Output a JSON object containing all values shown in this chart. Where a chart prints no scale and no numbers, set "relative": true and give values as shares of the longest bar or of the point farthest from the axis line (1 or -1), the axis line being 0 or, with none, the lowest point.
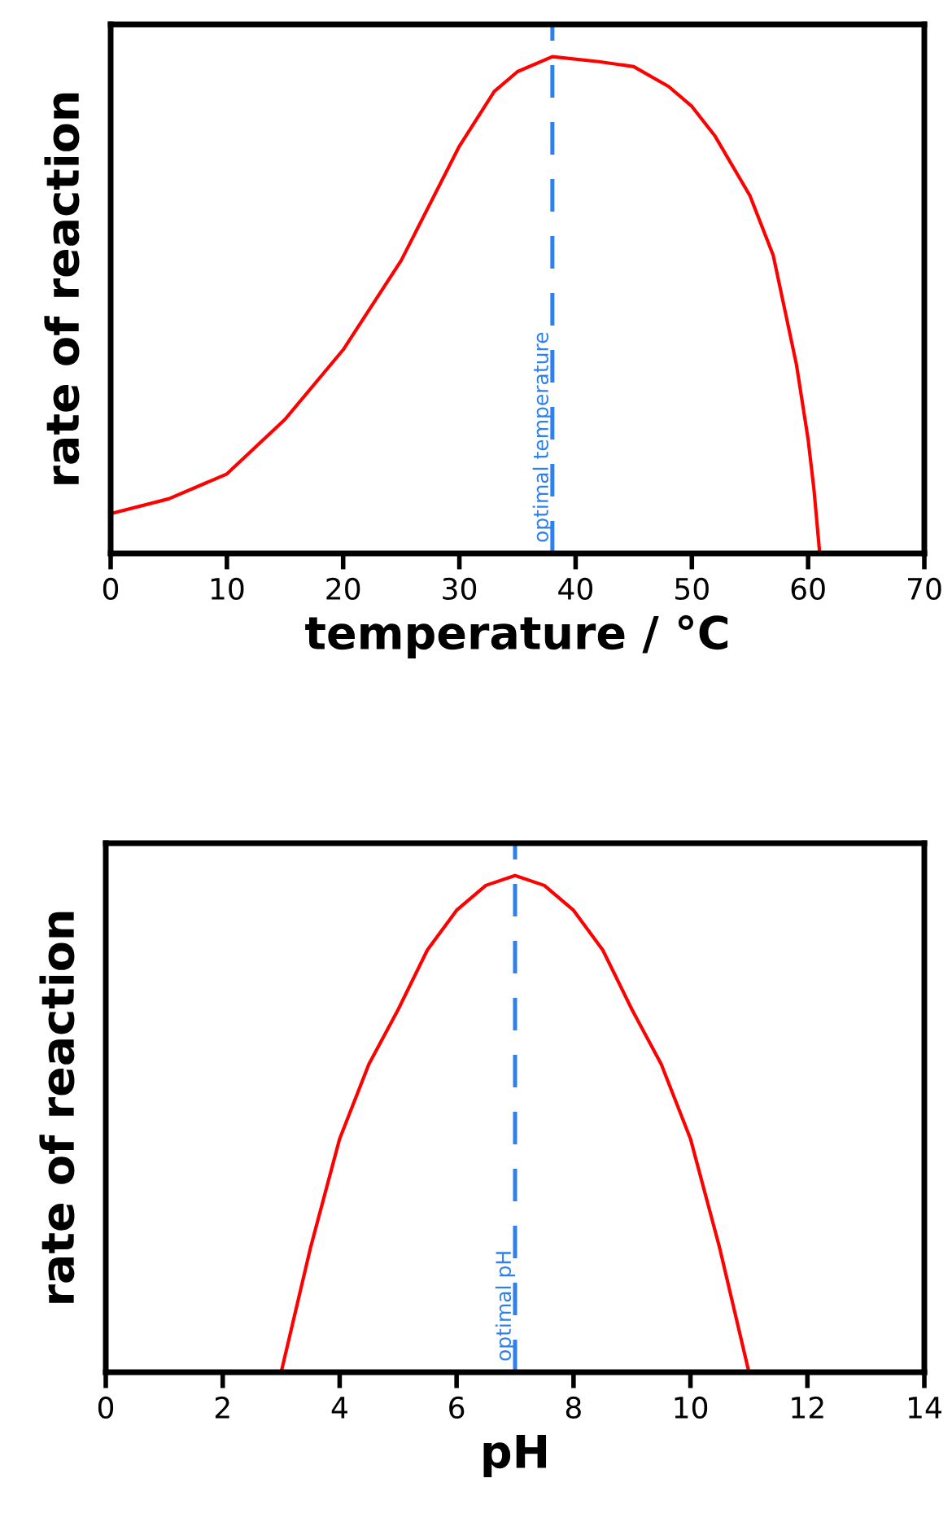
{
  "chart_data": [
    {
      "type": "line",
      "relative": true,
      "xlabel": "temperature / °C",
      "ylabel": "rate of reaction",
      "xlim": [
        0,
        70
      ],
      "xticks": [
        0,
        10,
        20,
        30,
        40,
        50,
        60,
        70
      ],
      "tick_labels": "x",
      "grid": false,
      "legend": false,
      "marker": "none",
      "line_style": "solid",
      "series": [
        {
          "color": "#ff0000",
          "x": [
            0,
            5,
            10,
            15,
            20,
            25,
            30,
            33,
            35,
            38,
            42,
            45,
            48,
            50,
            52,
            55,
            57,
            58,
            59,
            60,
            60.5,
            61
          ],
          "values": [
            0.08,
            0.11,
            0.16,
            0.27,
            0.41,
            0.59,
            0.82,
            0.93,
            0.97,
            1.0,
            0.99,
            0.98,
            0.94,
            0.9,
            0.84,
            0.72,
            0.6,
            0.49,
            0.38,
            0.23,
            0.13,
            0
          ]
        }
      ],
      "ref_lines": [
        {
          "axis": "x",
          "value": 38,
          "label": "optimal temperature",
          "color": "#2f80ed",
          "line_style": "dashed"
        }
      ]
    },
    {
      "type": "line",
      "relative": true,
      "xlabel": "pH",
      "ylabel": "rate of reaction",
      "xlim": [
        0,
        14
      ],
      "xticks": [
        0,
        2,
        4,
        6,
        8,
        10,
        12,
        14
      ],
      "tick_labels": "x",
      "grid": false,
      "legend": false,
      "marker": "none",
      "line_style": "solid",
      "series": [
        {
          "color": "#ff0000",
          "x": [
            3,
            3.5,
            4,
            4.5,
            5,
            5.5,
            6,
            6.5,
            7,
            7.5,
            8,
            8.5,
            9,
            9.5,
            10,
            10.5,
            11
          ],
          "values": [
            0,
            0.25,
            0.47,
            0.62,
            0.73,
            0.85,
            0.93,
            0.98,
            1.0,
            0.98,
            0.93,
            0.85,
            0.73,
            0.62,
            0.47,
            0.25,
            0
          ]
        }
      ],
      "ref_lines": [
        {
          "axis": "x",
          "value": 7,
          "label": "optimal pH",
          "color": "#2f80ed",
          "line_style": "dashed"
        }
      ]
    }
  ]
}
